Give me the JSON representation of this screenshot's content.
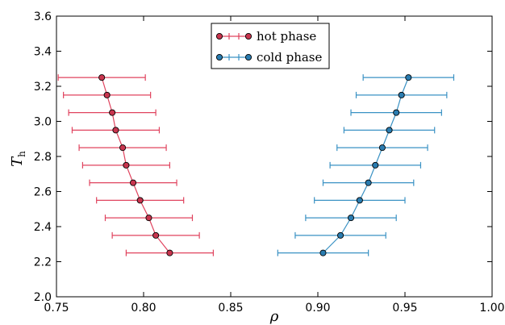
{
  "chart_data": {
    "type": "scatter",
    "title": "",
    "xlabel": "ρ",
    "ylabel": {
      "main": "T",
      "sub": "h"
    },
    "xlim": [
      0.75,
      1.0
    ],
    "ylim": [
      2.0,
      3.6
    ],
    "x_ticks": [
      "0.75",
      "0.80",
      "0.85",
      "0.90",
      "0.95",
      "1.00"
    ],
    "y_ticks": [
      "2.0",
      "2.2",
      "2.4",
      "2.6",
      "2.8",
      "3.0",
      "3.2",
      "3.4",
      "3.6"
    ],
    "legend_position": "top-center",
    "grid": false,
    "series": [
      {
        "name": "hot phase",
        "color": "#e0435e",
        "marker_fill": "#c8354e",
        "points": [
          {
            "y": 2.25,
            "x": 0.815,
            "xerr": 0.025
          },
          {
            "y": 2.35,
            "x": 0.807,
            "xerr": 0.025
          },
          {
            "y": 2.45,
            "x": 0.803,
            "xerr": 0.025
          },
          {
            "y": 2.55,
            "x": 0.798,
            "xerr": 0.025
          },
          {
            "y": 2.65,
            "x": 0.794,
            "xerr": 0.025
          },
          {
            "y": 2.75,
            "x": 0.79,
            "xerr": 0.025
          },
          {
            "y": 2.85,
            "x": 0.788,
            "xerr": 0.025
          },
          {
            "y": 2.95,
            "x": 0.784,
            "xerr": 0.025
          },
          {
            "y": 3.05,
            "x": 0.782,
            "xerr": 0.025
          },
          {
            "y": 3.15,
            "x": 0.779,
            "xerr": 0.025
          },
          {
            "y": 3.25,
            "x": 0.776,
            "xerr": 0.025
          }
        ]
      },
      {
        "name": "cold phase",
        "color": "#3a92c4",
        "marker_fill": "#2a7cb0",
        "points": [
          {
            "y": 2.25,
            "x": 0.903,
            "xerr": 0.026
          },
          {
            "y": 2.35,
            "x": 0.913,
            "xerr": 0.026
          },
          {
            "y": 2.45,
            "x": 0.919,
            "xerr": 0.026
          },
          {
            "y": 2.55,
            "x": 0.924,
            "xerr": 0.026
          },
          {
            "y": 2.65,
            "x": 0.929,
            "xerr": 0.026
          },
          {
            "y": 2.75,
            "x": 0.933,
            "xerr": 0.026
          },
          {
            "y": 2.85,
            "x": 0.937,
            "xerr": 0.026
          },
          {
            "y": 2.95,
            "x": 0.941,
            "xerr": 0.026
          },
          {
            "y": 3.05,
            "x": 0.945,
            "xerr": 0.026
          },
          {
            "y": 3.15,
            "x": 0.948,
            "xerr": 0.026
          },
          {
            "y": 3.25,
            "x": 0.952,
            "xerr": 0.026
          }
        ]
      }
    ]
  }
}
